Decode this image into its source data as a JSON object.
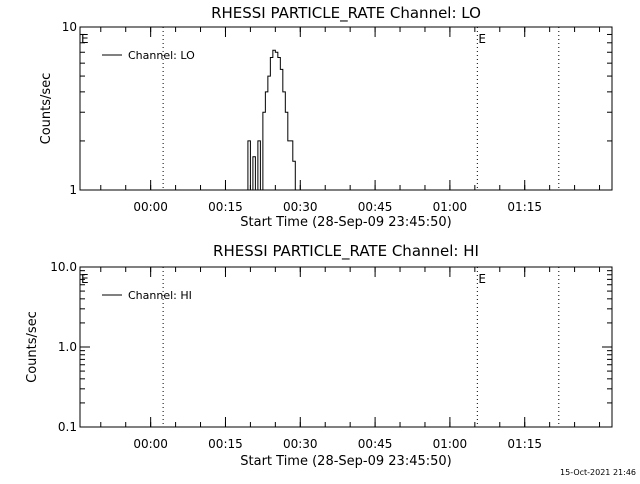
{
  "timestamp": "15-Oct-2021 21:46",
  "chart_data": [
    {
      "type": "line",
      "title": "RHESSI PARTICLE_RATE Channel: LO",
      "xlabel": "Start Time (28-Sep-09 23:45:50)",
      "ylabel": "Counts/sec",
      "yscale": "log",
      "ylim": [
        1,
        10
      ],
      "ytick_labels": [
        "1",
        "10"
      ],
      "xlim": [
        "23:45:50",
        "01:32:30"
      ],
      "xtick_labels": [
        "00:00",
        "00:15",
        "00:30",
        "00:45",
        "01:00",
        "01:15"
      ],
      "legend": "top-left",
      "series": [
        {
          "name": "Channel: LO",
          "x": [
            "00:19:00",
            "00:19:30",
            "00:20:00",
            "00:20:30",
            "00:21:00",
            "00:21:30",
            "00:22:00",
            "00:22:30",
            "00:23:00",
            "00:23:30",
            "00:24:00",
            "00:24:30",
            "00:25:00",
            "00:25:30",
            "00:26:00",
            "00:26:30",
            "00:27:00",
            "00:27:30",
            "00:28:00",
            "00:28:30",
            "00:29:00",
            "00:29:30"
          ],
          "values": [
            1.0,
            2.0,
            1.0,
            1.6,
            1.0,
            2.0,
            1.0,
            3.0,
            4.0,
            5.0,
            6.5,
            7.2,
            7.0,
            6.5,
            5.5,
            4.0,
            3.0,
            2.0,
            2.0,
            1.5,
            1.0,
            1.0
          ]
        }
      ],
      "markers": [
        {
          "time": "00:02:30",
          "label": ""
        },
        {
          "time": "01:05:30",
          "label": "E"
        },
        {
          "time": "01:21:50",
          "label": ""
        },
        {
          "time": "23:45:50",
          "label": "E"
        }
      ]
    },
    {
      "type": "line",
      "title": "RHESSI PARTICLE_RATE Channel: HI",
      "xlabel": "Start Time (28-Sep-09 23:45:50)",
      "ylabel": "Counts/sec",
      "yscale": "log",
      "ylim": [
        0.1,
        10
      ],
      "ytick_labels": [
        "0.1",
        "1.0",
        "10.0"
      ],
      "xlim": [
        "23:45:50",
        "01:32:30"
      ],
      "xtick_labels": [
        "00:00",
        "00:15",
        "00:30",
        "00:45",
        "01:00",
        "01:15"
      ],
      "legend": "top-left",
      "series": [
        {
          "name": "Channel: HI",
          "x": [],
          "values": []
        }
      ],
      "markers": [
        {
          "time": "00:02:30",
          "label": ""
        },
        {
          "time": "01:05:30",
          "label": "E"
        },
        {
          "time": "01:21:50",
          "label": ""
        },
        {
          "time": "23:45:50",
          "label": "E"
        }
      ]
    }
  ]
}
